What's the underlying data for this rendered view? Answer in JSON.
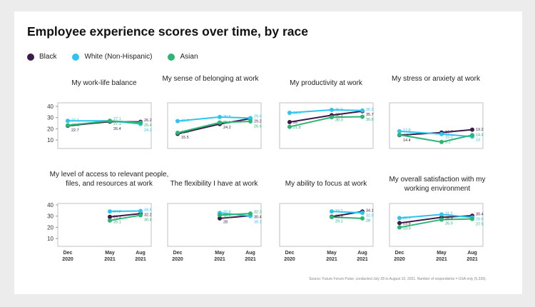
{
  "title": "Employee experience scores over time, by race",
  "legend": [
    {
      "name": "Black",
      "color": "#3d1a47"
    },
    {
      "name": "White (Non-Hispanic)",
      "color": "#2ec4f0"
    },
    {
      "name": "Asian",
      "color": "#2bb673"
    }
  ],
  "source": "Source: Future Forum Pulse, conducted July 28 to August 10, 2021. Number of respondents = USA only (5,339).",
  "chart_data": [
    {
      "type": "line",
      "title": "My work-life balance",
      "x": [
        "Dec 2020",
        "May 2021",
        "Aug 2021"
      ],
      "ylim": [
        0,
        40
      ],
      "yticks": [
        10,
        20,
        30,
        40
      ],
      "series": [
        {
          "name": "Black",
          "values": [
            22.7,
            26.4,
            26.2
          ]
        },
        {
          "name": "White (Non-Hispanic)",
          "values": [
            27.1,
            27.1,
            24.3
          ]
        },
        {
          "name": "Asian",
          "values": [
            23.1,
            27.1,
            25.4
          ]
        }
      ]
    },
    {
      "type": "line",
      "title": "My sense of belonging at work",
      "x": [
        "Dec 2020",
        "May 2021",
        "Aug 2021"
      ],
      "ylim": [
        0,
        40
      ],
      "series": [
        {
          "name": "Black",
          "values": [
            15.5,
            24.2,
            29.2
          ]
        },
        {
          "name": "White (Non-Hispanic)",
          "values": [
            26.9,
            30.5,
            29.6
          ]
        },
        {
          "name": "Asian",
          "values": [
            16.4,
            25.6,
            26.6
          ]
        }
      ]
    },
    {
      "type": "line",
      "title": "My productivity at work",
      "x": [
        "Dec 2020",
        "May 2021",
        "Aug 2021"
      ],
      "ylim": [
        0,
        40
      ],
      "series": [
        {
          "name": "Black",
          "values": [
            26,
            32.1,
            35.7
          ]
        },
        {
          "name": "White (Non-Hispanic)",
          "values": [
            34.3,
            36.9,
            36.3
          ]
        },
        {
          "name": "Asian",
          "values": [
            21.8,
            30.3,
            30.8
          ]
        }
      ]
    },
    {
      "type": "line",
      "title": "My stress or anxiety at work",
      "x": [
        "Dec 2020",
        "May 2021",
        "Aug 2021"
      ],
      "ylim": [
        0,
        40
      ],
      "series": [
        {
          "name": "Black",
          "values": [
            14.4,
            16.7,
            19.2
          ]
        },
        {
          "name": "White (Non-Hispanic)",
          "values": [
            17.8,
            15.3,
            13
          ]
        },
        {
          "name": "Asian",
          "values": [
            14.6,
            8.2,
            14.4
          ]
        }
      ]
    },
    {
      "type": "line",
      "title": "My level of access to relevant people, files, and resources at work",
      "x": [
        "Dec 2020",
        "May 2021",
        "Aug 2021"
      ],
      "ylim": [
        0,
        40
      ],
      "yticks": [
        10,
        20,
        30,
        40
      ],
      "series": [
        {
          "name": "Black",
          "values": [
            null,
            29.3,
            32.2
          ]
        },
        {
          "name": "White (Non-Hispanic)",
          "values": [
            null,
            34.2,
            34.6
          ]
        },
        {
          "name": "Asian",
          "values": [
            null,
            26.1,
            30.8
          ]
        }
      ]
    },
    {
      "type": "line",
      "title": "The flexibility I have at work",
      "x": [
        "Dec 2020",
        "May 2021",
        "Aug 2021"
      ],
      "ylim": [
        0,
        40
      ],
      "series": [
        {
          "name": "Black",
          "values": [
            null,
            28,
            30.4
          ]
        },
        {
          "name": "White (Non-Hispanic)",
          "values": [
            null,
            32.8,
            30.1
          ]
        },
        {
          "name": "Asian",
          "values": [
            null,
            30.9,
            32.3
          ]
        }
      ]
    },
    {
      "type": "line",
      "title": "My ability to focus at work",
      "x": [
        "Dec 2020",
        "May 2021",
        "Aug 2021"
      ],
      "ylim": [
        0,
        40
      ],
      "series": [
        {
          "name": "Black",
          "values": [
            null,
            29.5,
            34.1
          ]
        },
        {
          "name": "White (Non-Hispanic)",
          "values": [
            null,
            34.2,
            32.9
          ]
        },
        {
          "name": "Asian",
          "values": [
            null,
            29.1,
            28
          ]
        }
      ]
    },
    {
      "type": "line",
      "title": "My overall satisfaction with my working environment",
      "x": [
        "Dec 2020",
        "May 2021",
        "Aug 2021"
      ],
      "ylim": [
        0,
        40
      ],
      "series": [
        {
          "name": "Black",
          "values": [
            23.8,
            28.9,
            30.4
          ]
        },
        {
          "name": "White (Non-Hispanic)",
          "values": [
            28.3,
            31.5,
            28.8
          ]
        },
        {
          "name": "Asian",
          "values": [
            19.9,
            26.9,
            27.5
          ]
        }
      ]
    }
  ]
}
